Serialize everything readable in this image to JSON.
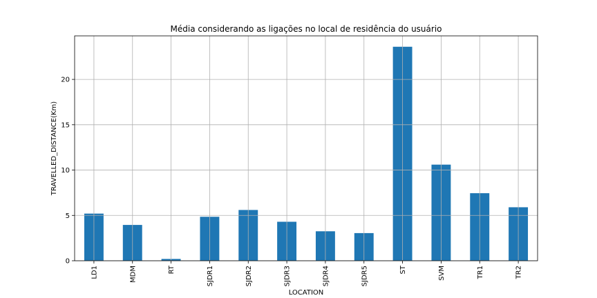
{
  "chart_data": {
    "type": "bar",
    "title": "Média considerando as ligações no local de residência do usuário",
    "xlabel": "LOCATION",
    "ylabel": "TRAVELLED_DISTANCE(Km)",
    "categories": [
      "LD1",
      "MDM",
      "RT",
      "SJDR1",
      "SJDR2",
      "SJDR3",
      "SJDR4",
      "SJDR5",
      "ST",
      "SVM",
      "TR1",
      "TR2"
    ],
    "values": [
      5.2,
      3.95,
      0.2,
      4.85,
      5.6,
      4.3,
      3.25,
      3.05,
      23.6,
      10.6,
      7.45,
      5.9
    ],
    "yticks": [
      0,
      5,
      10,
      15,
      20
    ],
    "ylim": [
      0,
      24.8
    ],
    "grid": true,
    "bar_color": "#1f77b4"
  }
}
